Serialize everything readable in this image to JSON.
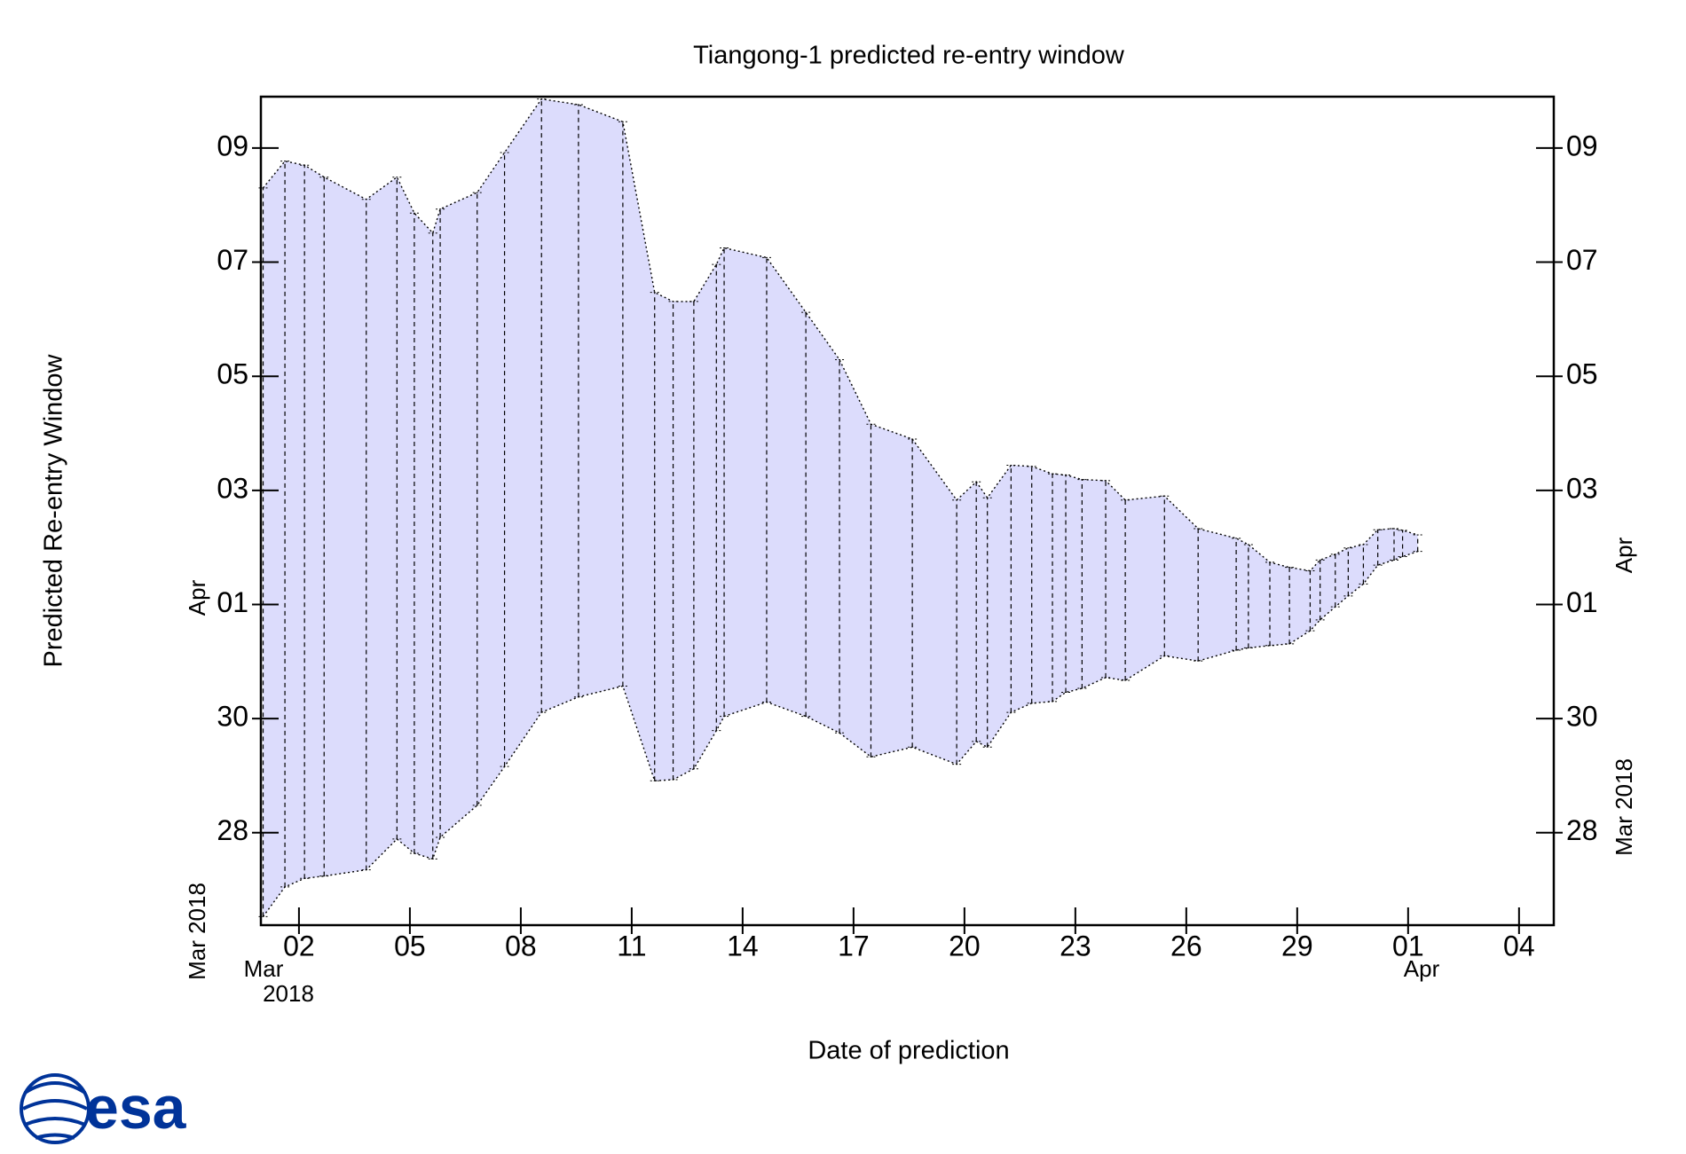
{
  "chart_data": {
    "type": "range",
    "title": "Tiangong-1 predicted re-entry window",
    "x_label": "Date of prediction",
    "y_label": "Predicted Re-entry Window",
    "x_month_labels": [
      "Mar",
      "2018",
      "Apr"
    ],
    "y_month_labels": [
      "Apr",
      "Mar 2018"
    ],
    "logo": "esa",
    "color": "#dcdcfc",
    "x": [
      1.03,
      1.62,
      2.15,
      2.68,
      3.82,
      4.65,
      5.12,
      5.62,
      5.82,
      6.82,
      7.56,
      8.56,
      9.56,
      10.76,
      11.62,
      12.12,
      12.68,
      13.29,
      13.5,
      14.65,
      15.71,
      16.62,
      17.47,
      18.59,
      19.79,
      20.32,
      20.62,
      21.26,
      21.82,
      22.38,
      22.74,
      23.18,
      23.82,
      24.35,
      25.41,
      26.32,
      27.35,
      27.68,
      28.26,
      28.79,
      29.35,
      29.62,
      30.03,
      30.38,
      30.79,
      31.18,
      31.62,
      31.85,
      32.26
    ],
    "high": [
      39.3,
      39.77,
      39.7,
      39.49,
      39.1,
      39.49,
      38.86,
      38.51,
      38.93,
      39.22,
      39.92,
      40.86,
      40.76,
      40.46,
      37.47,
      37.31,
      37.31,
      37.96,
      38.25,
      38.08,
      37.12,
      36.29,
      35.16,
      34.9,
      33.83,
      34.15,
      33.87,
      34.44,
      34.42,
      34.29,
      34.27,
      34.19,
      34.17,
      33.83,
      33.9,
      33.33,
      33.16,
      33.05,
      32.74,
      32.65,
      32.59,
      32.78,
      32.88,
      32.99,
      33.05,
      33.31,
      33.33,
      33.3,
      33.22
    ],
    "low": [
      26.53,
      27.05,
      27.2,
      27.24,
      27.35,
      27.89,
      27.64,
      27.54,
      27.92,
      28.48,
      29.16,
      30.11,
      30.38,
      30.57,
      28.91,
      28.93,
      29.12,
      29.79,
      30.04,
      30.29,
      30.04,
      29.75,
      29.33,
      29.5,
      29.2,
      29.6,
      29.5,
      30.11,
      30.27,
      30.3,
      30.46,
      30.53,
      30.72,
      30.67,
      31.1,
      31.01,
      31.2,
      31.24,
      31.28,
      31.31,
      31.54,
      31.73,
      31.96,
      32.15,
      32.36,
      32.69,
      32.78,
      32.84,
      32.93
    ],
    "xlim": [
      0.97,
      35.94
    ],
    "ylim": [
      26.38,
      40.9
    ],
    "xticks": [
      {
        "value": 2,
        "label": "02"
      },
      {
        "value": 5,
        "label": "05"
      },
      {
        "value": 8,
        "label": "08"
      },
      11,
      14,
      17,
      20,
      23,
      26,
      29,
      {
        "value": 32,
        "label": "01"
      },
      {
        "value": 35,
        "label": "04"
      }
    ],
    "yticks": [
      28,
      30,
      {
        "value": 32,
        "label": "01"
      },
      {
        "value": 34,
        "label": "03"
      },
      {
        "value": 36,
        "label": "05"
      },
      {
        "value": 38,
        "label": "07"
      },
      {
        "value": 40,
        "label": "09"
      }
    ]
  }
}
